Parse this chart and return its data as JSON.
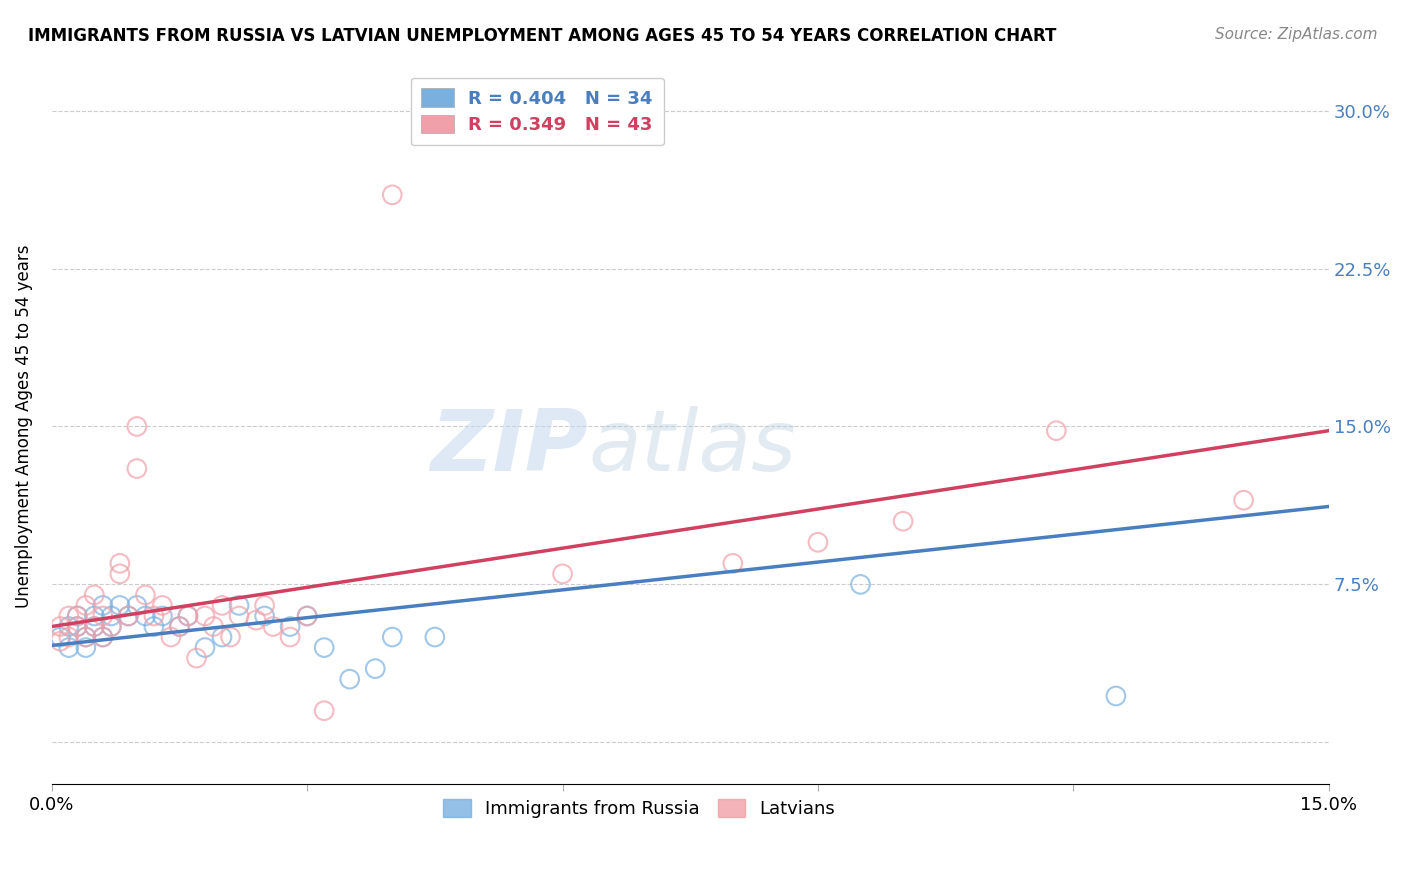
{
  "title": "IMMIGRANTS FROM RUSSIA VS LATVIAN UNEMPLOYMENT AMONG AGES 45 TO 54 YEARS CORRELATION CHART",
  "source": "Source: ZipAtlas.com",
  "ylabel": "Unemployment Among Ages 45 to 54 years",
  "xlim": [
    0.0,
    0.15
  ],
  "ylim": [
    -0.02,
    0.32
  ],
  "yticks": [
    0.0,
    0.075,
    0.15,
    0.225,
    0.3
  ],
  "ytick_labels": [
    "",
    "7.5%",
    "15.0%",
    "22.5%",
    "30.0%"
  ],
  "xticks": [
    0.0,
    0.03,
    0.06,
    0.09,
    0.12,
    0.15
  ],
  "xtick_labels": [
    "0.0%",
    "",
    "",
    "",
    "",
    "15.0%"
  ],
  "legend_blue_r": "R = 0.404",
  "legend_blue_n": "N = 34",
  "legend_pink_r": "R = 0.349",
  "legend_pink_n": "N = 43",
  "watermark_zip": "ZIP",
  "watermark_atlas": "atlas",
  "blue_color": "#7ab0e0",
  "pink_color": "#f0a0a8",
  "blue_line_color": "#4a7fbf",
  "pink_line_color": "#d04060",
  "blue_scatter": [
    [
      0.001,
      0.05
    ],
    [
      0.002,
      0.055
    ],
    [
      0.002,
      0.045
    ],
    [
      0.003,
      0.055
    ],
    [
      0.003,
      0.06
    ],
    [
      0.004,
      0.05
    ],
    [
      0.004,
      0.045
    ],
    [
      0.005,
      0.055
    ],
    [
      0.005,
      0.06
    ],
    [
      0.006,
      0.05
    ],
    [
      0.006,
      0.065
    ],
    [
      0.007,
      0.06
    ],
    [
      0.007,
      0.055
    ],
    [
      0.008,
      0.065
    ],
    [
      0.009,
      0.06
    ],
    [
      0.01,
      0.065
    ],
    [
      0.011,
      0.06
    ],
    [
      0.012,
      0.055
    ],
    [
      0.013,
      0.06
    ],
    [
      0.015,
      0.055
    ],
    [
      0.016,
      0.06
    ],
    [
      0.018,
      0.045
    ],
    [
      0.02,
      0.05
    ],
    [
      0.022,
      0.065
    ],
    [
      0.025,
      0.06
    ],
    [
      0.028,
      0.055
    ],
    [
      0.03,
      0.06
    ],
    [
      0.032,
      0.045
    ],
    [
      0.035,
      0.03
    ],
    [
      0.038,
      0.035
    ],
    [
      0.04,
      0.05
    ],
    [
      0.045,
      0.05
    ],
    [
      0.095,
      0.075
    ],
    [
      0.125,
      0.022
    ]
  ],
  "pink_scatter": [
    [
      0.001,
      0.048
    ],
    [
      0.001,
      0.055
    ],
    [
      0.002,
      0.05
    ],
    [
      0.002,
      0.06
    ],
    [
      0.003,
      0.06
    ],
    [
      0.003,
      0.055
    ],
    [
      0.004,
      0.05
    ],
    [
      0.004,
      0.065
    ],
    [
      0.005,
      0.055
    ],
    [
      0.005,
      0.07
    ],
    [
      0.006,
      0.06
    ],
    [
      0.006,
      0.05
    ],
    [
      0.007,
      0.055
    ],
    [
      0.008,
      0.085
    ],
    [
      0.008,
      0.08
    ],
    [
      0.009,
      0.06
    ],
    [
      0.01,
      0.13
    ],
    [
      0.01,
      0.15
    ],
    [
      0.011,
      0.07
    ],
    [
      0.012,
      0.06
    ],
    [
      0.013,
      0.065
    ],
    [
      0.014,
      0.05
    ],
    [
      0.015,
      0.055
    ],
    [
      0.016,
      0.06
    ],
    [
      0.017,
      0.04
    ],
    [
      0.018,
      0.06
    ],
    [
      0.019,
      0.055
    ],
    [
      0.02,
      0.065
    ],
    [
      0.021,
      0.05
    ],
    [
      0.022,
      0.06
    ],
    [
      0.024,
      0.058
    ],
    [
      0.025,
      0.065
    ],
    [
      0.026,
      0.055
    ],
    [
      0.028,
      0.05
    ],
    [
      0.03,
      0.06
    ],
    [
      0.032,
      0.015
    ],
    [
      0.04,
      0.26
    ],
    [
      0.06,
      0.08
    ],
    [
      0.08,
      0.085
    ],
    [
      0.09,
      0.095
    ],
    [
      0.1,
      0.105
    ],
    [
      0.118,
      0.148
    ],
    [
      0.14,
      0.115
    ]
  ],
  "blue_trendline_x": [
    0.0,
    0.15
  ],
  "blue_trendline_y": [
    0.046,
    0.112
  ],
  "pink_trendline_x": [
    0.0,
    0.15
  ],
  "pink_trendline_y": [
    0.055,
    0.148
  ],
  "background_color": "#ffffff",
  "grid_color": "#cccccc"
}
